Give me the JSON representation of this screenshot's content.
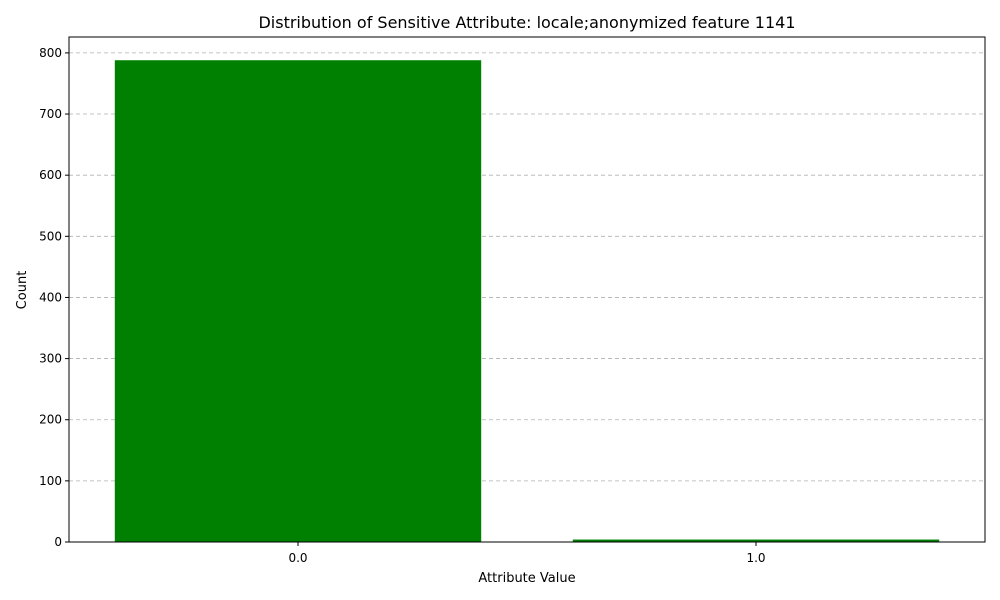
{
  "chart_data": {
    "type": "bar",
    "title": "Distribution of Sensitive Attribute: locale;anonymized feature 1141",
    "xlabel": "Attribute Value",
    "ylabel": "Count",
    "categories": [
      "0.0",
      "1.0"
    ],
    "values": [
      788,
      4
    ],
    "ylim": [
      0,
      826
    ],
    "yticks": [
      0,
      100,
      200,
      300,
      400,
      500,
      600,
      700,
      800
    ],
    "grid": "y-axis, dashed",
    "legend": "none",
    "bar_color": "#008000"
  }
}
